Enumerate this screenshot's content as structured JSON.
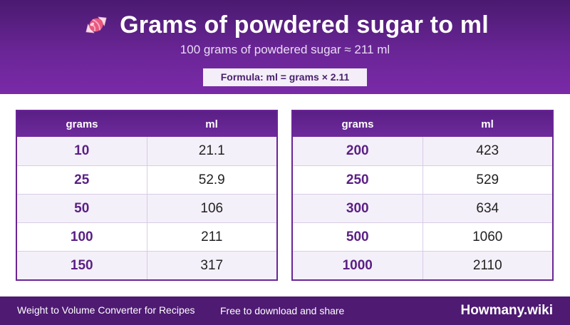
{
  "header": {
    "title": "Grams of powdered sugar to ml",
    "subtitle": "100 grams of powdered sugar ≈ 211 ml",
    "formula": "Formula: ml = grams × 2.11",
    "icon": "candy-icon"
  },
  "tables": {
    "left": {
      "headers": [
        "grams",
        "ml"
      ],
      "rows": [
        {
          "grams": "10",
          "ml": "21.1"
        },
        {
          "grams": "25",
          "ml": "52.9"
        },
        {
          "grams": "50",
          "ml": "106"
        },
        {
          "grams": "100",
          "ml": "211"
        },
        {
          "grams": "150",
          "ml": "317"
        }
      ]
    },
    "right": {
      "headers": [
        "grams",
        "ml"
      ],
      "rows": [
        {
          "grams": "200",
          "ml": "423"
        },
        {
          "grams": "250",
          "ml": "529"
        },
        {
          "grams": "300",
          "ml": "634"
        },
        {
          "grams": "500",
          "ml": "1060"
        },
        {
          "grams": "1000",
          "ml": "2110"
        }
      ]
    }
  },
  "footer": {
    "description": "Weight to Volume Converter for Recipes",
    "free_text": "Free to download and share",
    "brand": "Howmany.wiki"
  },
  "colors": {
    "accent": "#6a2596",
    "footer_bg": "#4e1a72",
    "grams_text": "#5a1f85"
  }
}
